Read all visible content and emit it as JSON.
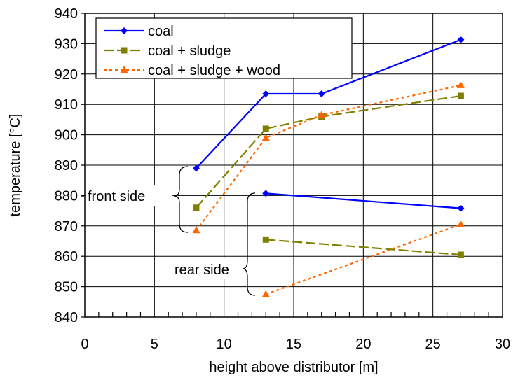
{
  "chart_data": {
    "type": "line",
    "xlabel": "height above distributor [m]",
    "ylabel": "temperature [°C]",
    "xlim": [
      0,
      30
    ],
    "ylim": [
      840,
      940
    ],
    "x_ticks": [
      "0",
      "5",
      "10",
      "15",
      "20",
      "25",
      "30"
    ],
    "y_ticks": [
      "840",
      "850",
      "860",
      "870",
      "880",
      "890",
      "900",
      "910",
      "920",
      "930",
      "940"
    ],
    "grid": true,
    "legend": {
      "placement": "top-left",
      "entries": [
        "coal",
        "coal + sludge",
        "coal + sludge + wood"
      ]
    },
    "annotations": [
      "front side",
      "rear side"
    ],
    "series": [
      {
        "name": "coal",
        "group": "front side",
        "color": "#0000ff",
        "marker": "diamond",
        "dash": "solid",
        "points": [
          [
            8,
            889
          ],
          [
            13,
            913.5
          ],
          [
            17,
            913.5
          ],
          [
            27,
            931.3
          ]
        ]
      },
      {
        "name": "coal + sludge",
        "group": "front side",
        "color": "#808000",
        "marker": "square",
        "dash": "dashed",
        "points": [
          [
            8,
            876
          ],
          [
            13,
            902
          ],
          [
            17,
            906
          ],
          [
            27,
            912.8
          ]
        ]
      },
      {
        "name": "coal + sludge + wood",
        "group": "front side",
        "color": "#ff6600",
        "marker": "triangle",
        "dash": "dotted",
        "points": [
          [
            8,
            868.5
          ],
          [
            13,
            899
          ],
          [
            17,
            906.5
          ],
          [
            27,
            916.3
          ]
        ]
      },
      {
        "name": "coal",
        "group": "rear side",
        "color": "#0000ff",
        "marker": "diamond",
        "dash": "solid",
        "points": [
          [
            13,
            880.7
          ],
          [
            27,
            875.8
          ]
        ]
      },
      {
        "name": "coal + sludge",
        "group": "rear side",
        "color": "#808000",
        "marker": "square",
        "dash": "dashed",
        "points": [
          [
            13,
            865.5
          ],
          [
            27,
            860.5
          ]
        ]
      },
      {
        "name": "coal + sludge + wood",
        "group": "rear side",
        "color": "#ff6600",
        "marker": "triangle",
        "dash": "dotted",
        "points": [
          [
            13,
            847.5
          ],
          [
            27,
            870.5
          ]
        ]
      }
    ]
  }
}
